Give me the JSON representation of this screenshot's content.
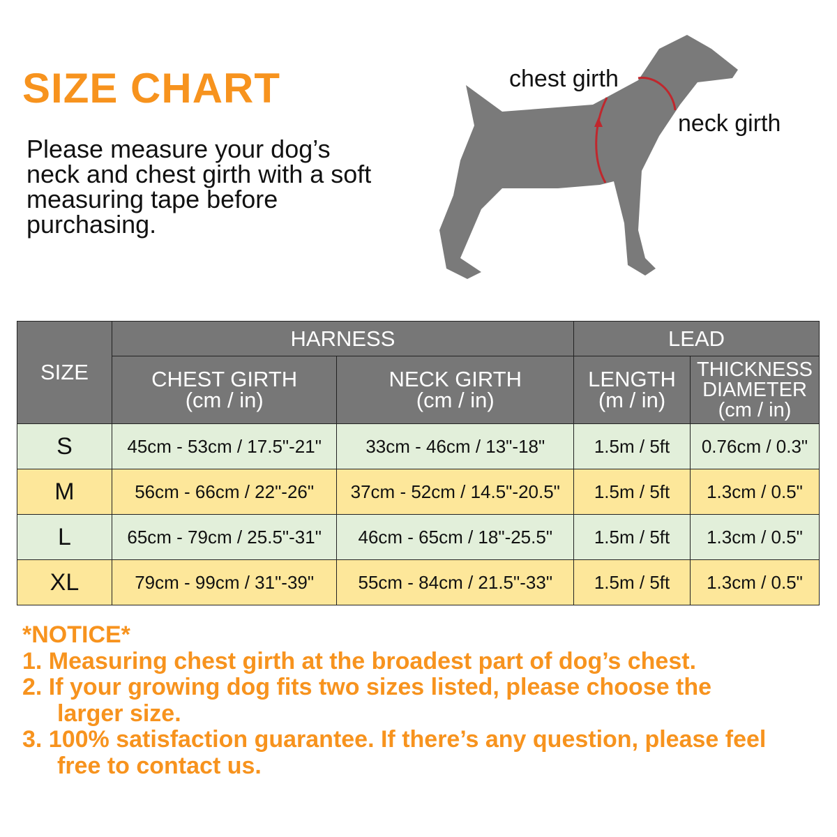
{
  "title": "SIZE CHART",
  "intro": "Please measure your dog’s neck and chest girth with a soft measuring tape before purchasing.",
  "diagram": {
    "chest_label": "chest girth",
    "neck_label": "neck girth"
  },
  "table": {
    "size_header": "SIZE",
    "harness_header": "HARNESS",
    "lead_header": "LEAD",
    "columns": [
      {
        "name": "CHEST GIRTH",
        "unit": "(cm / in)"
      },
      {
        "name": "NECK GIRTH",
        "unit": "(cm / in)"
      },
      {
        "name": "LENGTH",
        "unit": "(m / in)"
      },
      {
        "name": "THICKNESS DIAMETER",
        "unit": "(cm / in)"
      }
    ],
    "rows": [
      {
        "size": "S",
        "chest": "45cm - 53cm / 17.5\"-21\"",
        "neck": "33cm - 46cm / 13\"-18\"",
        "length": "1.5m / 5ft",
        "thickness": "0.76cm / 0.3\""
      },
      {
        "size": "M",
        "chest": "56cm - 66cm / 22\"-26\"",
        "neck": "37cm - 52cm / 14.5\"-20.5\"",
        "length": "1.5m / 5ft",
        "thickness": "1.3cm / 0.5\""
      },
      {
        "size": "L",
        "chest": "65cm - 79cm / 25.5\"-31\"",
        "neck": "46cm - 65cm / 18\"-25.5\"",
        "length": "1.5m / 5ft",
        "thickness": "1.3cm / 0.5\""
      },
      {
        "size": "XL",
        "chest": "79cm - 99cm / 31\"-39\"",
        "neck": "55cm - 84cm / 21.5\"-33\"",
        "length": "1.5m / 5ft",
        "thickness": "1.3cm / 0.5\""
      }
    ]
  },
  "notice": {
    "heading": "*NOTICE*",
    "items": [
      "1.  Measuring chest girth at the broadest part of dog’s chest.",
      "2.  If your growing dog fits two sizes listed, please choose the",
      "larger size.",
      "3. 100% satisfaction guarantee. If there’s any question, please feel",
      "free to contact us."
    ]
  },
  "colors": {
    "accent": "#f7931e",
    "header": "#777777",
    "row_green": "#e2efda",
    "row_yellow": "#fde79a"
  }
}
